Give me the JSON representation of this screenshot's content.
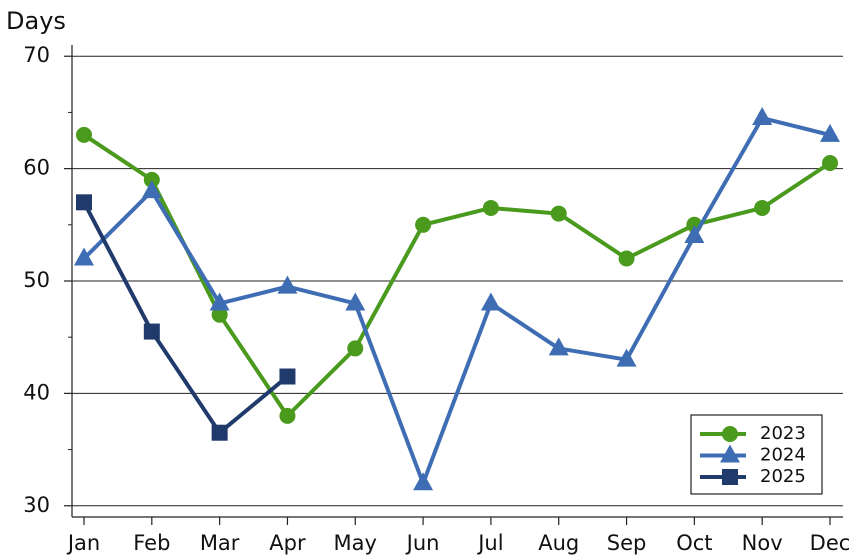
{
  "chart_data": {
    "type": "line",
    "y_label": "Days",
    "categories": [
      "Jan",
      "Feb",
      "Mar",
      "Apr",
      "May",
      "Jun",
      "Jul",
      "Aug",
      "Sep",
      "Oct",
      "Nov",
      "Dec"
    ],
    "series": [
      {
        "name": "2023",
        "color": "#4a9a1e",
        "marker": "circle",
        "values": [
          63,
          59,
          47,
          38,
          44,
          55,
          56.5,
          56,
          52,
          55,
          56.5,
          60.5
        ]
      },
      {
        "name": "2024",
        "color": "#3e6db4",
        "marker": "triangle",
        "values": [
          52,
          58,
          48,
          49.5,
          48,
          32,
          48,
          44,
          43,
          54,
          64.5,
          63
        ]
      },
      {
        "name": "2025",
        "color": "#1f3a6b",
        "marker": "square",
        "values": [
          57,
          45.5,
          36.5,
          41.5,
          null,
          null,
          null,
          null,
          null,
          null,
          null,
          null
        ]
      }
    ],
    "ylim": [
      29,
      71
    ],
    "yticks": [
      30,
      40,
      50,
      60,
      70
    ],
    "minor_yticks": [
      35,
      45,
      55,
      65
    ],
    "grid": true,
    "legend": "lower right"
  }
}
